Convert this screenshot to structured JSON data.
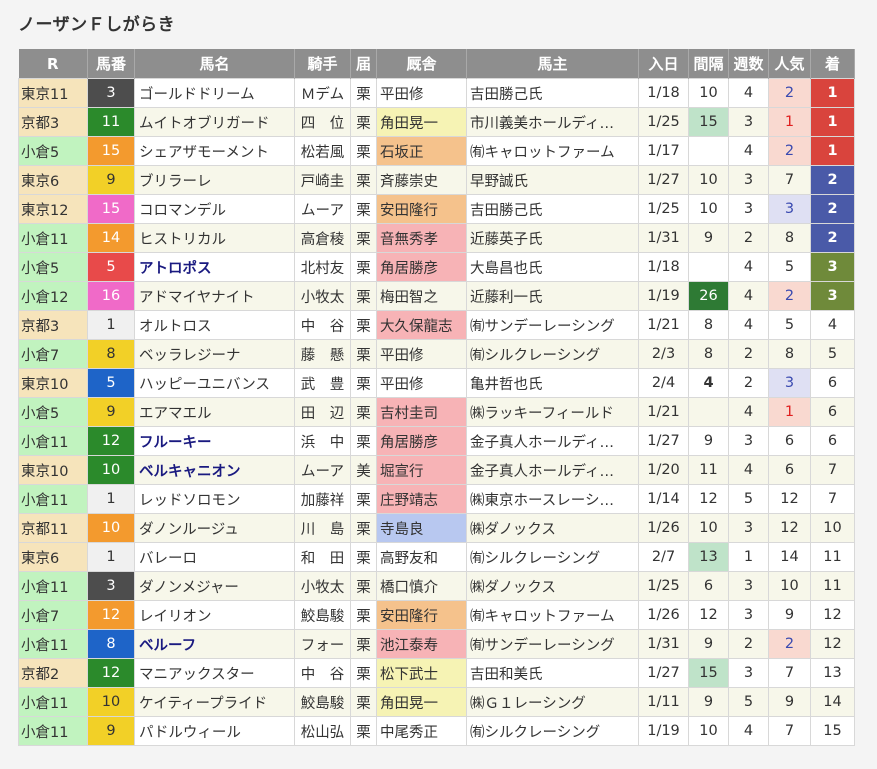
{
  "title": "ノーザンＦしがらき",
  "headers": [
    "R",
    "馬番",
    "馬名",
    "騎手",
    "届",
    "厩舎",
    "馬主",
    "入日",
    "間隔",
    "週数",
    "人気",
    "着"
  ],
  "rows": [
    {
      "race": "東京11",
      "umaban": "3",
      "uma_color": "#4d4d4d",
      "uma_text": "#ffffff",
      "name": "ゴールドドリーム",
      "bold": false,
      "jockey": "Ｍデム",
      "todoke": "栗",
      "stable": "平田修",
      "stable_hl": "",
      "owner": "吉田勝己氏",
      "date": "1/18",
      "interval": "10",
      "interval_style": "",
      "weeks": "4",
      "pop": "2",
      "pop_style": "pinkblue",
      "finish": "1"
    },
    {
      "race": "京都3",
      "umaban": "11",
      "uma_color": "#2b8a2b",
      "uma_text": "#ffffff",
      "name": "ムイトオブリガード",
      "bold": false,
      "jockey": "四　位",
      "todoke": "栗",
      "stable": "角田晃一",
      "stable_hl": "yellow",
      "owner": "市川義美ホールディ…",
      "date": "1/25",
      "interval": "15",
      "interval_style": "green",
      "weeks": "3",
      "pop": "1",
      "pop_style": "pink",
      "finish": "1"
    },
    {
      "race": "小倉5",
      "umaban": "15",
      "uma_color": "#f39a2e",
      "uma_text": "#ffffff",
      "name": "シェアザモーメント",
      "bold": false,
      "jockey": "松若風",
      "todoke": "栗",
      "stable": "石坂正",
      "stable_hl": "orange",
      "owner": "㈲キャロットファーム",
      "date": "1/17",
      "interval": "",
      "interval_style": "",
      "weeks": "4",
      "pop": "2",
      "pop_style": "pinkblue",
      "finish": "1"
    },
    {
      "race": "東京6",
      "umaban": "9",
      "uma_color": "#f2d027",
      "uma_text": "#333333",
      "name": "ブリラーレ",
      "bold": false,
      "jockey": "戸崎圭",
      "todoke": "栗",
      "stable": "斉藤崇史",
      "stable_hl": "",
      "owner": "早野誠氏",
      "date": "1/27",
      "interval": "10",
      "interval_style": "",
      "weeks": "3",
      "pop": "7",
      "pop_style": "",
      "finish": "2"
    },
    {
      "race": "東京12",
      "umaban": "15",
      "uma_color": "#f06ac8",
      "uma_text": "#ffffff",
      "name": "コロマンデル",
      "bold": false,
      "jockey": "ムーア",
      "todoke": "栗",
      "stable": "安田隆行",
      "stable_hl": "orange",
      "owner": "吉田勝己氏",
      "date": "1/25",
      "interval": "10",
      "interval_style": "",
      "weeks": "3",
      "pop": "3",
      "pop_style": "lav",
      "finish": "2"
    },
    {
      "race": "小倉11",
      "umaban": "14",
      "uma_color": "#f39a2e",
      "uma_text": "#ffffff",
      "name": "ヒストリカル",
      "bold": false,
      "jockey": "高倉稜",
      "todoke": "栗",
      "stable": "音無秀孝",
      "stable_hl": "pink",
      "owner": "近藤英子氏",
      "date": "1/31",
      "interval": "9",
      "interval_style": "",
      "weeks": "2",
      "pop": "8",
      "pop_style": "",
      "finish": "2"
    },
    {
      "race": "小倉5",
      "umaban": "5",
      "uma_color": "#e84a4a",
      "uma_text": "#ffffff",
      "name": "アトロポス",
      "bold": true,
      "jockey": "北村友",
      "todoke": "栗",
      "stable": "角居勝彦",
      "stable_hl": "pink",
      "owner": "大島昌也氏",
      "date": "1/18",
      "interval": "",
      "interval_style": "",
      "weeks": "4",
      "pop": "5",
      "pop_style": "",
      "finish": "3"
    },
    {
      "race": "小倉12",
      "umaban": "16",
      "uma_color": "#f06ac8",
      "uma_text": "#ffffff",
      "name": "アドマイヤナイト",
      "bold": false,
      "jockey": "小牧太",
      "todoke": "栗",
      "stable": "梅田智之",
      "stable_hl": "",
      "owner": "近藤利一氏",
      "date": "1/19",
      "interval": "26",
      "interval_style": "dark",
      "weeks": "4",
      "pop": "2",
      "pop_style": "pinkblue",
      "finish": "3"
    },
    {
      "race": "京都3",
      "umaban": "1",
      "uma_color": "#f0f0f0",
      "uma_text": "#333333",
      "name": "オルトロス",
      "bold": false,
      "jockey": "中　谷",
      "todoke": "栗",
      "stable": "大久保龍志",
      "stable_hl": "pink",
      "owner": "㈲サンデーレーシング",
      "date": "1/21",
      "interval": "8",
      "interval_style": "",
      "weeks": "4",
      "pop": "5",
      "pop_style": "",
      "finish": "4"
    },
    {
      "race": "小倉7",
      "umaban": "8",
      "uma_color": "#f2d027",
      "uma_text": "#333333",
      "name": "ベッラレジーナ",
      "bold": false,
      "jockey": "藤　懸",
      "todoke": "栗",
      "stable": "平田修",
      "stable_hl": "",
      "owner": "㈲シルクレーシング",
      "date": "2/3",
      "interval": "8",
      "interval_style": "",
      "weeks": "2",
      "pop": "8",
      "pop_style": "",
      "finish": "5"
    },
    {
      "race": "東京10",
      "umaban": "5",
      "uma_color": "#1e64c8",
      "uma_text": "#ffffff",
      "name": "ハッピーユニバンス",
      "bold": false,
      "jockey": "武　豊",
      "todoke": "栗",
      "stable": "平田修",
      "stable_hl": "",
      "owner": "亀井哲也氏",
      "date": "2/4",
      "interval": "4",
      "interval_style": "bold",
      "weeks": "2",
      "pop": "3",
      "pop_style": "lav",
      "finish": "6"
    },
    {
      "race": "小倉5",
      "umaban": "9",
      "uma_color": "#f2d027",
      "uma_text": "#333333",
      "name": "エアマエル",
      "bold": false,
      "jockey": "田　辺",
      "todoke": "栗",
      "stable": "吉村圭司",
      "stable_hl": "pink",
      "owner": "㈱ラッキーフィールド",
      "date": "1/21",
      "interval": "",
      "interval_style": "",
      "weeks": "4",
      "pop": "1",
      "pop_style": "pink",
      "finish": "6"
    },
    {
      "race": "小倉11",
      "umaban": "12",
      "uma_color": "#2b8a2b",
      "uma_text": "#ffffff",
      "name": "フルーキー",
      "bold": true,
      "jockey": "浜　中",
      "todoke": "栗",
      "stable": "角居勝彦",
      "stable_hl": "pink",
      "owner": "金子真人ホールディ…",
      "date": "1/27",
      "interval": "9",
      "interval_style": "",
      "weeks": "3",
      "pop": "6",
      "pop_style": "",
      "finish": "6"
    },
    {
      "race": "東京10",
      "umaban": "10",
      "uma_color": "#2b8a2b",
      "uma_text": "#ffffff",
      "name": "ベルキャニオン",
      "bold": true,
      "jockey": "ムーア",
      "todoke": "美",
      "stable": "堀宣行",
      "stable_hl": "pink",
      "owner": "金子真人ホールディ…",
      "date": "1/20",
      "interval": "11",
      "interval_style": "",
      "weeks": "4",
      "pop": "6",
      "pop_style": "",
      "finish": "7"
    },
    {
      "race": "小倉11",
      "umaban": "1",
      "uma_color": "#f0f0f0",
      "uma_text": "#333333",
      "name": "レッドソロモン",
      "bold": false,
      "jockey": "加藤祥",
      "todoke": "栗",
      "stable": "庄野靖志",
      "stable_hl": "pink",
      "owner": "㈱東京ホースレーシ…",
      "date": "1/14",
      "interval": "12",
      "interval_style": "",
      "weeks": "5",
      "pop": "12",
      "pop_style": "",
      "finish": "7"
    },
    {
      "race": "京都11",
      "umaban": "10",
      "uma_color": "#f39a2e",
      "uma_text": "#ffffff",
      "name": "ダノンルージュ",
      "bold": false,
      "jockey": "川　島",
      "todoke": "栗",
      "stable": "寺島良",
      "stable_hl": "blue",
      "owner": "㈱ダノックス",
      "date": "1/26",
      "interval": "10",
      "interval_style": "",
      "weeks": "3",
      "pop": "12",
      "pop_style": "",
      "finish": "10"
    },
    {
      "race": "東京6",
      "umaban": "1",
      "uma_color": "#f0f0f0",
      "uma_text": "#333333",
      "name": "バレーロ",
      "bold": false,
      "jockey": "和　田",
      "todoke": "栗",
      "stable": "高野友和",
      "stable_hl": "",
      "owner": "㈲シルクレーシング",
      "date": "2/7",
      "interval": "13",
      "interval_style": "green",
      "weeks": "1",
      "pop": "14",
      "pop_style": "",
      "finish": "11"
    },
    {
      "race": "小倉11",
      "umaban": "3",
      "uma_color": "#4d4d4d",
      "uma_text": "#ffffff",
      "name": "ダノンメジャー",
      "bold": false,
      "jockey": "小牧太",
      "todoke": "栗",
      "stable": "橋口慎介",
      "stable_hl": "",
      "owner": "㈱ダノックス",
      "date": "1/25",
      "interval": "6",
      "interval_style": "",
      "weeks": "3",
      "pop": "10",
      "pop_style": "",
      "finish": "11"
    },
    {
      "race": "小倉7",
      "umaban": "12",
      "uma_color": "#f39a2e",
      "uma_text": "#ffffff",
      "name": "レイリオン",
      "bold": false,
      "jockey": "鮫島駿",
      "todoke": "栗",
      "stable": "安田隆行",
      "stable_hl": "orange",
      "owner": "㈲キャロットファーム",
      "date": "1/26",
      "interval": "12",
      "interval_style": "",
      "weeks": "3",
      "pop": "9",
      "pop_style": "",
      "finish": "12"
    },
    {
      "race": "小倉11",
      "umaban": "8",
      "uma_color": "#1e64c8",
      "uma_text": "#ffffff",
      "name": "ベルーフ",
      "bold": true,
      "jockey": "フォー",
      "todoke": "栗",
      "stable": "池江泰寿",
      "stable_hl": "pink",
      "owner": "㈲サンデーレーシング",
      "date": "1/31",
      "interval": "9",
      "interval_style": "",
      "weeks": "2",
      "pop": "2",
      "pop_style": "pinkblue",
      "finish": "12"
    },
    {
      "race": "京都2",
      "umaban": "12",
      "uma_color": "#2b8a2b",
      "uma_text": "#ffffff",
      "name": "マニアックスター",
      "bold": false,
      "jockey": "中　谷",
      "todoke": "栗",
      "stable": "松下武士",
      "stable_hl": "yellow",
      "owner": "吉田和美氏",
      "date": "1/27",
      "interval": "15",
      "interval_style": "green",
      "weeks": "3",
      "pop": "7",
      "pop_style": "",
      "finish": "13"
    },
    {
      "race": "小倉11",
      "umaban": "10",
      "uma_color": "#f2d027",
      "uma_text": "#333333",
      "name": "ケイティープライド",
      "bold": false,
      "jockey": "鮫島駿",
      "todoke": "栗",
      "stable": "角田晃一",
      "stable_hl": "yellow",
      "owner": "㈱Ｇ１レーシング",
      "date": "1/11",
      "interval": "9",
      "interval_style": "",
      "weeks": "5",
      "pop": "9",
      "pop_style": "",
      "finish": "14"
    },
    {
      "race": "小倉11",
      "umaban": "9",
      "uma_color": "#f2d027",
      "uma_text": "#333333",
      "name": "パドルウィール",
      "bold": false,
      "jockey": "松山弘",
      "todoke": "栗",
      "stable": "中尾秀正",
      "stable_hl": "",
      "owner": "㈲シルクレーシング",
      "date": "1/19",
      "interval": "10",
      "interval_style": "",
      "weeks": "4",
      "pop": "7",
      "pop_style": "",
      "finish": "15"
    }
  ]
}
